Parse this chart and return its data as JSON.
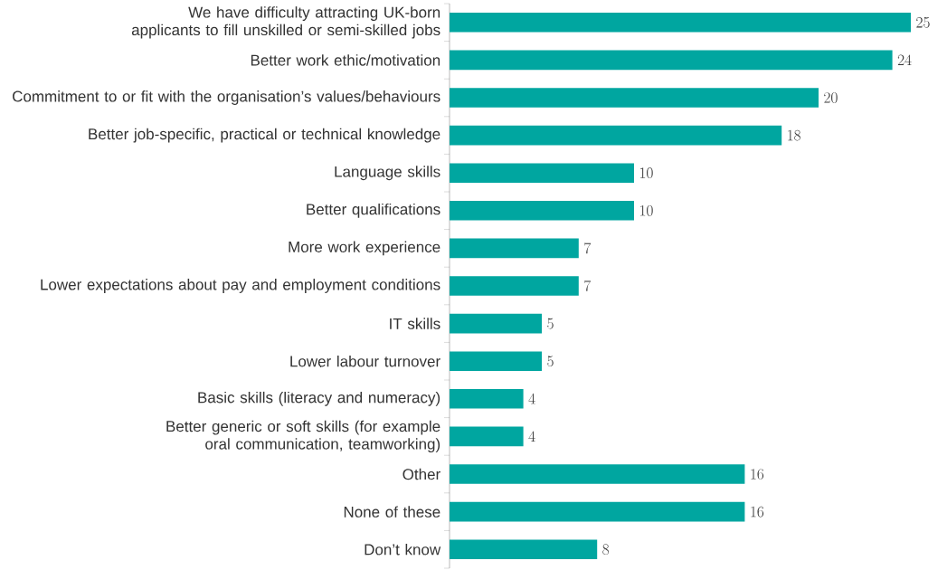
{
  "chart_data": {
    "type": "bar",
    "orientation": "horizontal",
    "relative": false,
    "data_labels": true,
    "color": "#00a6a0",
    "categories": [
      "We have difficulty attracting UK-born applicants to fill unskilled or semi-skilled jobs",
      "Better work ethic/motivation",
      "Commitment to or fit with the organisation’s values/behaviours",
      "Better job-specific, practical or technical knowledge",
      "Language skills",
      "Better qualifications",
      "More work experience",
      "Lower expectations about pay and employment conditions",
      "IT skills",
      "Lower labour turnover",
      "Basic skills (literacy and numeracy)",
      "Better generic or soft skills (for example oral communication, teamworking)",
      "Other",
      "None of these",
      "Don’t know"
    ],
    "values": [
      25,
      24,
      20,
      18,
      10,
      10,
      7,
      7,
      5,
      5,
      4,
      4,
      16,
      16,
      8
    ]
  }
}
